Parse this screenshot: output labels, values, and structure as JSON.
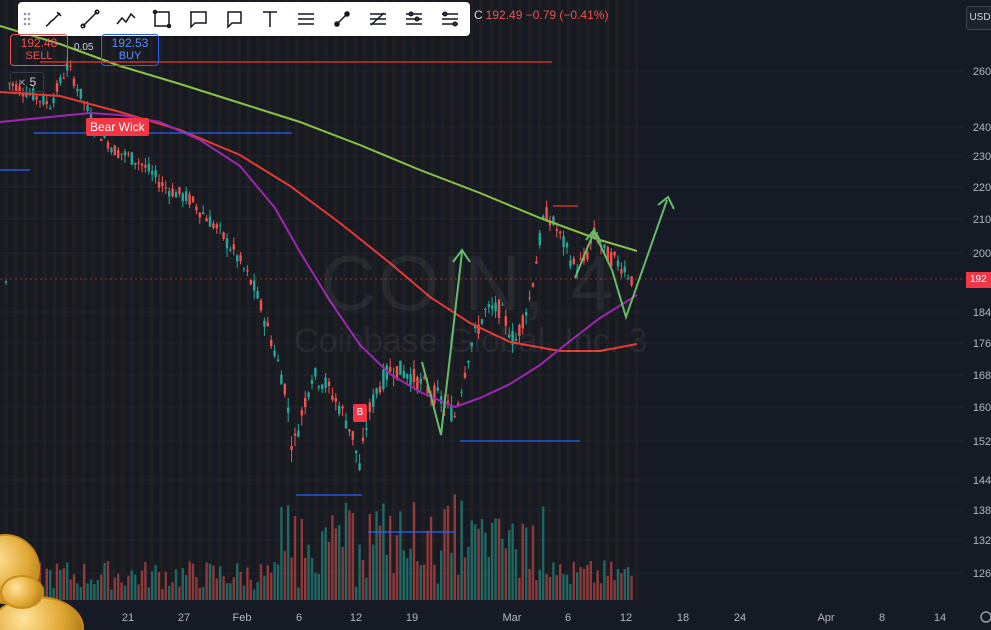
{
  "toolbar": {
    "tools": [
      {
        "id": "brush",
        "name": "brush-tool"
      },
      {
        "id": "trendline",
        "name": "trend-line-tool"
      },
      {
        "id": "path",
        "name": "path-tool"
      },
      {
        "id": "rectangle",
        "name": "rectangle-tool"
      },
      {
        "id": "callout",
        "name": "callout-tool"
      },
      {
        "id": "note",
        "name": "note-tool"
      },
      {
        "id": "text",
        "name": "text-tool"
      },
      {
        "id": "lines",
        "name": "horizontal-lines-tool"
      },
      {
        "id": "ray",
        "name": "ray-tool"
      },
      {
        "id": "fib",
        "name": "fib-tool"
      },
      {
        "id": "levels",
        "name": "levels-tool"
      },
      {
        "id": "settings",
        "name": "settings-tool"
      }
    ]
  },
  "ohlc": {
    "close_label": "C",
    "close": "192.49",
    "change": "−0.79 (−0.41%)"
  },
  "trade": {
    "sell_price": "192.48",
    "sell_label": "SELL",
    "spread": "0.05",
    "buy_price": "192.53",
    "buy_label": "BUY"
  },
  "interval": "5",
  "currency": "USD",
  "labels": {
    "wick": "Bear Wick",
    "buy_marker": "B",
    "last_price": "192"
  },
  "watermark": {
    "symbol": "COIN, 4",
    "name": "Coinbase Global, Inc.",
    "suffix": "3"
  },
  "colors": {
    "bg": "#161a25",
    "up": "#26a69a",
    "down": "#ef5350",
    "ema_short": "#9c27b0",
    "ema_mid": "#e53935",
    "ema_long": "#8bc34a",
    "arrow": "#66bb6a",
    "hline": "#2962ff",
    "resistance": "#e53935"
  },
  "chart_data": {
    "type": "candlestick",
    "x_ticks": [
      "21",
      "27",
      "Feb",
      "6",
      "12",
      "19",
      "Mar",
      "6",
      "12",
      "18",
      "24",
      "Apr",
      "8",
      "14"
    ],
    "y_ticks": [
      260,
      240,
      230,
      220,
      210,
      200,
      184,
      176,
      168,
      160,
      152,
      144,
      138,
      132,
      126
    ],
    "price_last": 192.49,
    "indicators": [
      "ema-purple",
      "ema-red",
      "ema-green"
    ]
  }
}
